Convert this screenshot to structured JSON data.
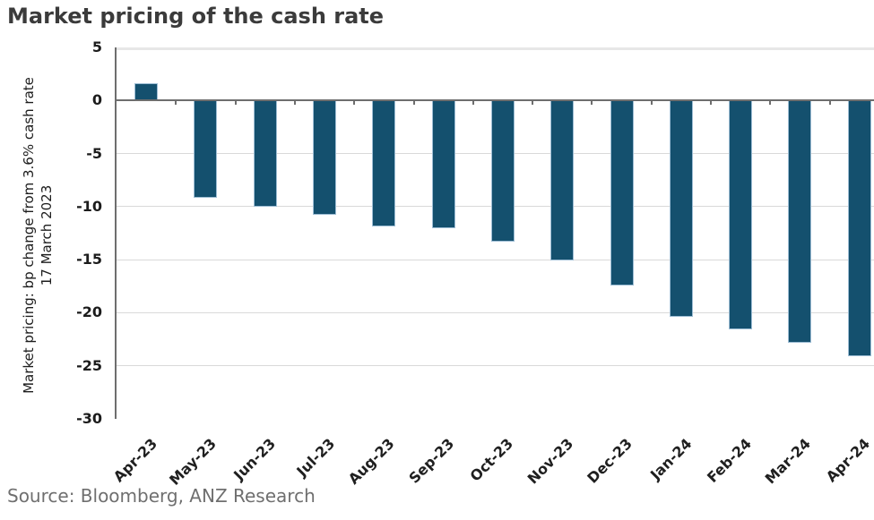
{
  "chart_data": {
    "type": "bar",
    "title": "Market pricing of the cash rate",
    "categories": [
      "Apr-23",
      "May-23",
      "Jun-23",
      "Jul-23",
      "Aug-23",
      "Sep-23",
      "Oct-23",
      "Nov-23",
      "Dec-23",
      "Jan-24",
      "Feb-24",
      "Mar-24",
      "Apr-24"
    ],
    "values": [
      1.6,
      -9.2,
      -10.0,
      -10.8,
      -11.9,
      -12.0,
      -13.3,
      -15.1,
      -17.4,
      -20.4,
      -21.6,
      -22.8,
      -24.1
    ],
    "ylabel_line1": "Market pricing: bp change from 3.6% cash rate",
    "ylabel_line2": "17 March 2023",
    "yticks": [
      5,
      0,
      -5,
      -10,
      -15,
      -20,
      -25,
      -30
    ],
    "ylim": [
      -30,
      5
    ],
    "grid": true,
    "legend": "none",
    "bar_color": "#14506e",
    "source": "Source: Bloomberg, ANZ Research"
  }
}
